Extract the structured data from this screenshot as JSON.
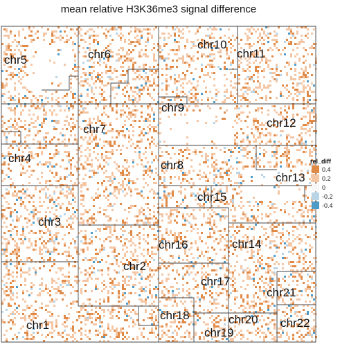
{
  "chart_data": {
    "type": "heatmap",
    "title": "mean relative H3K36me3 signal difference",
    "legend": {
      "title": "rel_diff",
      "entries": [
        {
          "label": "0.4",
          "value": 0.4,
          "color": "#e08a48"
        },
        {
          "label": "0.2",
          "value": 0.2,
          "color": "#f4c6a4"
        },
        {
          "label": "0",
          "value": 0,
          "color": "#f7f7f7"
        },
        {
          "label": "-0.2",
          "value": -0.2,
          "color": "#b8d4e6"
        },
        {
          "label": "-0.4",
          "value": -0.4,
          "color": "#4f9bc7"
        }
      ]
    },
    "regions": [
      "chr1",
      "chr2",
      "chr3",
      "chr4",
      "chr5",
      "chr6",
      "chr7",
      "chr8",
      "chr9",
      "chr10",
      "chr11",
      "chr12",
      "chr13",
      "chr14",
      "chr15",
      "chr16",
      "chr17",
      "chr18",
      "chr19",
      "chr20",
      "chr21",
      "chr22"
    ],
    "value_range": [
      -0.4,
      0.4
    ]
  }
}
